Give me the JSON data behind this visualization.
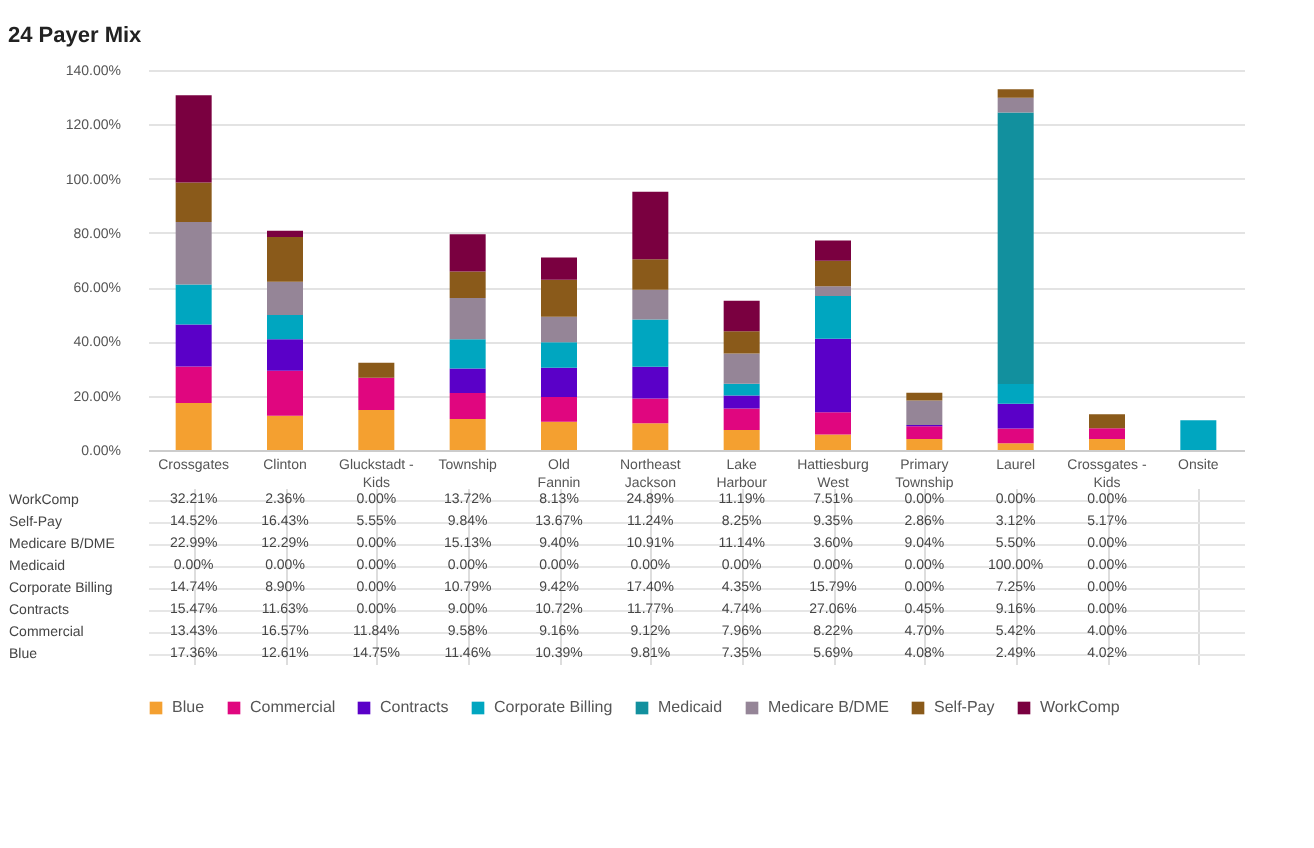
{
  "chart_data": {
    "type": "bar",
    "stacked": true,
    "title": "24 Payer Mix",
    "categories": [
      "Crossgates",
      "Clinton",
      "Gluckstadt - Kids",
      "Township",
      "Old Fannin",
      "Northeast Jackson",
      "Lake Harbour",
      "Hattiesburg West",
      "Primary Township",
      "Laurel",
      "Crossgates - Kids",
      "Onsite"
    ],
    "series": [
      {
        "name": "Blue",
        "color": "#f4a030",
        "values": [
          17.36,
          12.61,
          14.75,
          11.46,
          10.39,
          9.81,
          7.35,
          5.69,
          4.08,
          2.49,
          4.02,
          null
        ],
        "value_labels": [
          "17.36%",
          "12.61%",
          "14.75%",
          "11.46%",
          "10.39%",
          "9.81%",
          "7.35%",
          "5.69%",
          "4.08%",
          "2.49%",
          "4.02%",
          null
        ]
      },
      {
        "name": "Commercial",
        "color": "#e0067f",
        "values": [
          13.43,
          16.57,
          11.84,
          9.58,
          9.16,
          9.12,
          7.96,
          8.22,
          4.7,
          5.42,
          4.0,
          null
        ],
        "value_labels": [
          "13.43%",
          "16.57%",
          "11.84%",
          "9.58%",
          "9.16%",
          "9.12%",
          "7.96%",
          "8.22%",
          "4.70%",
          "5.42%",
          "4.00%",
          null
        ]
      },
      {
        "name": "Contracts",
        "color": "#5a00c8",
        "values": [
          15.47,
          11.63,
          0,
          9.0,
          10.72,
          11.77,
          4.74,
          27.06,
          0.45,
          9.16,
          0,
          null
        ],
        "value_labels": [
          "15.47%",
          "11.63%",
          "0.00%",
          "9.00%",
          "10.72%",
          "11.77%",
          "4.74%",
          "27.06%",
          "0.45%",
          "9.16%",
          "0.00%",
          null
        ]
      },
      {
        "name": "Corporate Billing",
        "color": "#00a6c0",
        "values": [
          14.74,
          8.9,
          0,
          10.79,
          9.42,
          17.4,
          4.35,
          15.79,
          0,
          7.25,
          0,
          11
        ],
        "value_labels": [
          "14.74%",
          "8.90%",
          "0.00%",
          "10.79%",
          "9.42%",
          "17.40%",
          "4.35%",
          "15.79%",
          "0.00%",
          "7.25%",
          "0.00%",
          null
        ]
      },
      {
        "name": "Medicaid",
        "color": "#12909e",
        "values": [
          0,
          0,
          0,
          0,
          0,
          0,
          0,
          0,
          0,
          100,
          0,
          null
        ],
        "value_labels": [
          "0.00%",
          "0.00%",
          "0.00%",
          "0.00%",
          "0.00%",
          "0.00%",
          "0.00%",
          "0.00%",
          "0.00%",
          "100.00%",
          "0.00%",
          null
        ]
      },
      {
        "name": "Medicare B/DME",
        "color": "#958597",
        "values": [
          22.99,
          12.29,
          0,
          15.13,
          9.4,
          10.91,
          11.14,
          3.6,
          9.04,
          5.5,
          0,
          null
        ],
        "value_labels": [
          "22.99%",
          "12.29%",
          "0.00%",
          "15.13%",
          "9.40%",
          "10.91%",
          "11.14%",
          "3.60%",
          "9.04%",
          "5.50%",
          "0.00%",
          null
        ]
      },
      {
        "name": "Self-Pay",
        "color": "#8a5a1a",
        "values": [
          14.52,
          16.43,
          5.55,
          9.84,
          13.67,
          11.24,
          8.25,
          9.35,
          2.86,
          3.12,
          5.17,
          null
        ],
        "value_labels": [
          "14.52%",
          "16.43%",
          "5.55%",
          "9.84%",
          "13.67%",
          "11.24%",
          "8.25%",
          "9.35%",
          "2.86%",
          "3.12%",
          "5.17%",
          null
        ]
      },
      {
        "name": "WorkComp",
        "color": "#7a0040",
        "values": [
          32.21,
          2.36,
          0,
          13.72,
          8.13,
          24.89,
          11.19,
          7.51,
          0,
          0,
          0,
          null
        ],
        "value_labels": [
          "32.21%",
          "2.36%",
          "0.00%",
          "13.72%",
          "8.13%",
          "24.89%",
          "11.19%",
          "7.51%",
          "0.00%",
          "0.00%",
          "0.00%",
          null
        ]
      }
    ],
    "ylim": [
      0,
      140
    ],
    "yticks": [
      {
        "value": 0,
        "label": "0.00%"
      },
      {
        "value": 20,
        "label": "20.00%"
      },
      {
        "value": 40,
        "label": "40.00%"
      },
      {
        "value": 60,
        "label": "60.00%"
      },
      {
        "value": 80,
        "label": "80.00%"
      },
      {
        "value": 100,
        "label": "100.00%"
      },
      {
        "value": 120,
        "label": "120.00%"
      },
      {
        "value": 140,
        "label": "140.00%"
      }
    ],
    "grid": "y",
    "legend": "bottom"
  }
}
